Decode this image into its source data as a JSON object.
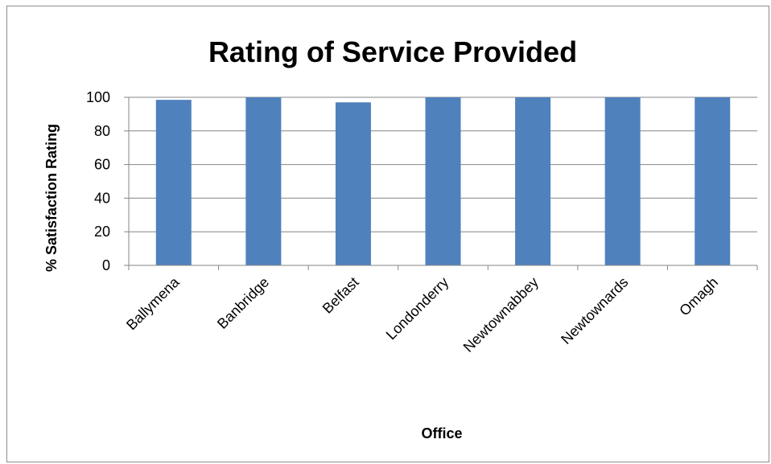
{
  "chart_data": {
    "type": "bar",
    "title": "Rating of Service Provided",
    "xlabel": "Office",
    "ylabel": "% Satisfaction Rating",
    "categories": [
      "Ballymena",
      "Banbridge",
      "Belfast",
      "Londonderry",
      "Newtownabbey",
      "Newtownards",
      "Omagh"
    ],
    "values": [
      98.5,
      100,
      97,
      100,
      100,
      100,
      100
    ],
    "ylim": [
      0,
      100
    ],
    "yticks": [
      0,
      20,
      40,
      60,
      80,
      100
    ],
    "grid": true,
    "legend": "none",
    "bar_color": "#4f81bd",
    "gridline_color": "#868686"
  }
}
